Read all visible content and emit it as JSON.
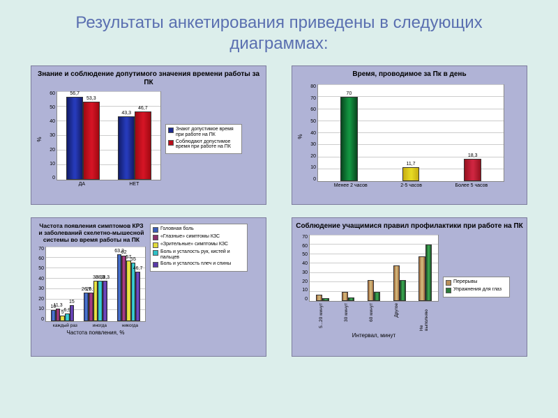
{
  "slideTitle": "Результаты анкетирования приведены в следующих диаграммах:",
  "chart1": {
    "type": "bar",
    "title": "Знание и соблюдение допутимого значения времени работы за ПК",
    "ylabel": "%",
    "ylim": [
      0,
      60
    ],
    "ytick_step": 10,
    "categories": [
      "ДА",
      "НЕТ"
    ],
    "series": [
      {
        "name": "Знают допустимое время при работе на ПК",
        "color": "#1b2a8f",
        "values": [
          56.7,
          43.3
        ]
      },
      {
        "name": "Соблюдают допустимое время при работе на ПК",
        "color": "#b80e1a",
        "values": [
          53.3,
          46.7
        ]
      }
    ],
    "value_labels": [
      [
        "56,7",
        "43,3"
      ],
      [
        "53,3",
        "46,7"
      ]
    ],
    "background_color": "#ffffff",
    "grid_color": "#cccccc",
    "bar_width": 0.32
  },
  "chart2": {
    "type": "bar",
    "title": "Время, проводимое за Пк в день",
    "ylabel": "%",
    "ylim": [
      0,
      80
    ],
    "ytick_step": 10,
    "categories": [
      "Менее 2 часов",
      "2-5 часов",
      "Более 5 часов"
    ],
    "values": [
      70,
      11.7,
      18.3
    ],
    "value_labels": [
      "70",
      "11,7",
      "18,3"
    ],
    "bar_colors": [
      "#0d6b2e",
      "#d6c21a",
      "#b01a2e"
    ],
    "background_color": "#ffffff",
    "grid_color": "#cccccc",
    "bar_width": 0.28
  },
  "chart3": {
    "type": "bar",
    "title": "Частота появления симптомов КРЗ и заболеваний скелетно-мышесной системы во время работы на ПК",
    "ylabel": "",
    "xlabel": "Частота появления, %",
    "ylim": [
      0,
      70
    ],
    "ytick_step": 10,
    "categories": [
      "каждый раз",
      "иногда",
      "никогда"
    ],
    "series": [
      {
        "name": "Головная боль",
        "color": "#3a5db8",
        "values": [
          10,
          26.7,
          63.3
        ]
      },
      {
        "name": "«Глазные» симптомы КЗС",
        "color": "#8a2f6a",
        "values": [
          11.3,
          26.7,
          62
        ]
      },
      {
        "name": "«Зрительные» симптомы КЗС",
        "color": "#e0da3a",
        "values": [
          5,
          38,
          57
        ]
      },
      {
        "name": "Боль и усталость рук, кистей и пальцев",
        "color": "#2fbfc5",
        "values": [
          6.9,
          38.3,
          55
        ]
      },
      {
        "name": "Боль и усталость плеч и спины",
        "color": "#5a3aa8",
        "values": [
          15,
          38.3,
          46.7
        ]
      }
    ],
    "value_labels_by_group": [
      [
        "10",
        "11,3",
        "5",
        "6,9",
        "15"
      ],
      [
        "26,7",
        "26,7",
        "38",
        "38,3",
        "38,3"
      ],
      [
        "63,3",
        "62",
        "57",
        "55",
        "46,7"
      ]
    ],
    "background_color": "#ffffff",
    "grid_color": "#cccccc",
    "bar_width": 0.14
  },
  "chart4": {
    "type": "bar",
    "title": "Соблюдение учащимися правил профилактики при работе на ПК",
    "xlabel": "Интервал, минут",
    "ylim": [
      0,
      70
    ],
    "ytick_step": 10,
    "categories": [
      "5...20 минут",
      "30 минут",
      "60 минут",
      "Другое",
      "Не выполняю"
    ],
    "series": [
      {
        "name": "Перерывы",
        "color": "#b98f5a",
        "values": [
          7,
          10,
          22,
          38,
          48
        ]
      },
      {
        "name": "Упражнения для глаз",
        "color": "#2a7a3a",
        "values": [
          3,
          4,
          10,
          22,
          60
        ]
      }
    ],
    "background_color": "#ffffff",
    "grid_color": "#cccccc",
    "bar_width": 0.25
  }
}
